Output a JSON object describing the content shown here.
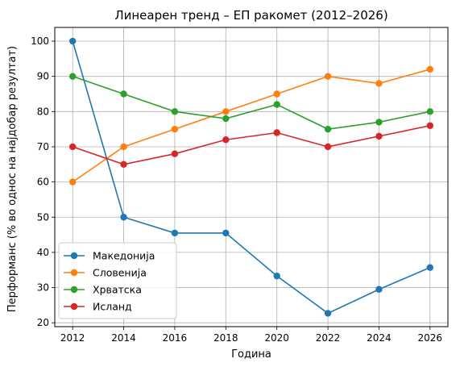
{
  "chart_data": {
    "type": "line",
    "title": "Линеарен тренд – ЕП ракомет (2012–2026)",
    "xlabel": "Година",
    "ylabel": "Перформанс (% во однос на најдобар резултат)",
    "x": [
      2012,
      2014,
      2016,
      2018,
      2020,
      2022,
      2024,
      2026
    ],
    "x_ticks": [
      2012,
      2014,
      2016,
      2018,
      2020,
      2022,
      2024,
      2026
    ],
    "y_ticks": [
      20,
      30,
      40,
      50,
      60,
      70,
      80,
      90,
      100
    ],
    "xlim": [
      2011.3,
      2026.7
    ],
    "ylim": [
      18.9,
      103.9
    ],
    "grid": true,
    "legend_position": "lower-left",
    "series": [
      {
        "name": "Македонија",
        "color": "#1f77b4",
        "values": [
          100,
          50,
          45.5,
          45.5,
          33.3,
          22.7,
          29.5,
          35.7
        ]
      },
      {
        "name": "Словенија",
        "color": "#ff7f0e",
        "values": [
          60,
          70,
          75,
          80,
          85,
          90,
          88,
          92
        ]
      },
      {
        "name": "Хрватска",
        "color": "#2ca02c",
        "values": [
          90,
          85,
          80,
          78,
          82,
          75,
          77,
          80
        ]
      },
      {
        "name": "Исланд",
        "color": "#d62728",
        "values": [
          70,
          65,
          68,
          72,
          74,
          70,
          73,
          76
        ]
      }
    ]
  }
}
